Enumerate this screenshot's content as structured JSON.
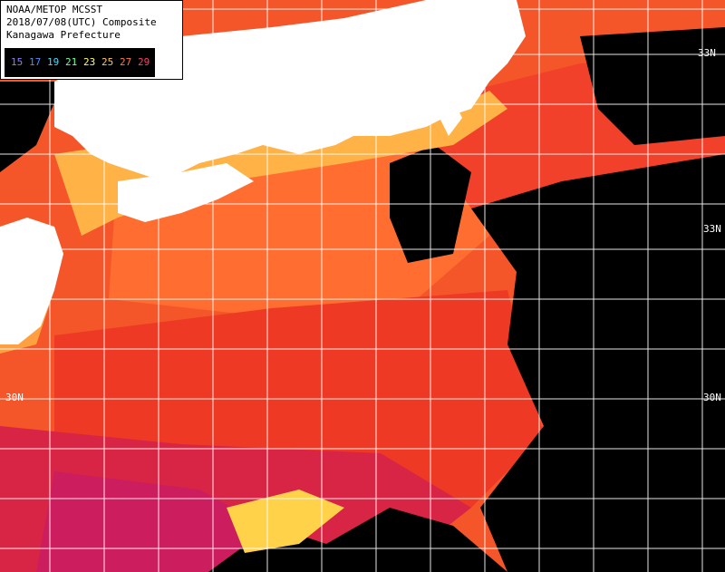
{
  "header": {
    "line1": "NOAA/METOP MCSST",
    "line2": "2018/07/08(UTC) Composite",
    "line3": "Kanagawa Prefecture"
  },
  "legend": {
    "ticks": [
      {
        "label": "15",
        "color": "#8f7bff"
      },
      {
        "label": "17",
        "color": "#4d8dff"
      },
      {
        "label": "19",
        "color": "#34e0ff"
      },
      {
        "label": "21",
        "color": "#70ff9a"
      },
      {
        "label": "23",
        "color": "#ffff5c"
      },
      {
        "label": "25",
        "color": "#ffc65c"
      },
      {
        "label": "27",
        "color": "#ff7a3a"
      },
      {
        "label": "29",
        "color": "#ff3a70"
      }
    ]
  },
  "grid": {
    "lat_labels": {
      "lat_33_right": "33N",
      "lat_30_left": "30N",
      "lat_30_right": "30N",
      "lat_33_top_right": "33N"
    }
  },
  "colors": {
    "land": "#ffffff",
    "cloud": "#000000",
    "sea_warm": "#ff6a2c",
    "sea_hot": "#e8261e",
    "sea_hottest": "#d81b52",
    "coast_cool": "#ffd24a",
    "grid_line": "#ffffff"
  }
}
